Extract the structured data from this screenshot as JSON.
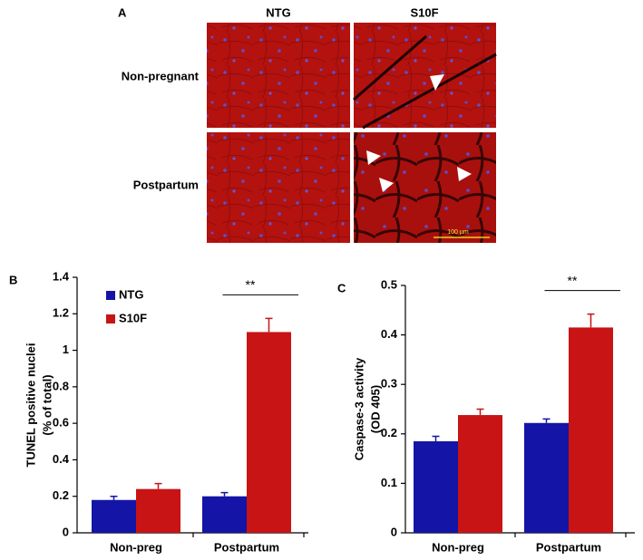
{
  "panel_a": {
    "label": "A",
    "columns": [
      "NTG",
      "S10F"
    ],
    "rows": [
      "Non-pregnant",
      "Postpartum"
    ],
    "scale_bar": "100 µm"
  },
  "chart_data": [
    {
      "type": "bar",
      "panel": "B",
      "ylabel": [
        "TUNEL positive nuclei",
        "(% of total)"
      ],
      "categories": [
        "Non-preg",
        "Postpartum"
      ],
      "series": [
        {
          "name": "NTG",
          "color": "#1414a6",
          "values": [
            0.18,
            0.2
          ],
          "errors": [
            0.02,
            0.02
          ]
        },
        {
          "name": "S10F",
          "color": "#c81414",
          "values": [
            0.24,
            1.1
          ],
          "errors": [
            0.03,
            0.075
          ]
        }
      ],
      "ylim": [
        0,
        1.4
      ],
      "yticks": [
        0,
        0.2,
        0.4,
        0.6,
        0.8,
        1,
        1.2,
        1.4
      ],
      "annotation": "**",
      "legend": "upper left"
    },
    {
      "type": "bar",
      "panel": "C",
      "ylabel": [
        "Caspase-3 activity",
        "(OD 405)"
      ],
      "categories": [
        "Non-preg",
        "Postpartum"
      ],
      "series": [
        {
          "name": "NTG",
          "color": "#1414a6",
          "values": [
            0.185,
            0.222
          ],
          "errors": [
            0.01,
            0.008
          ]
        },
        {
          "name": "S10F",
          "color": "#c81414",
          "values": [
            0.238,
            0.415
          ],
          "errors": [
            0.012,
            0.027
          ]
        }
      ],
      "ylim": [
        0,
        0.5
      ],
      "yticks": [
        0,
        0.1,
        0.2,
        0.3,
        0.4,
        0.5
      ],
      "annotation": "**"
    }
  ]
}
